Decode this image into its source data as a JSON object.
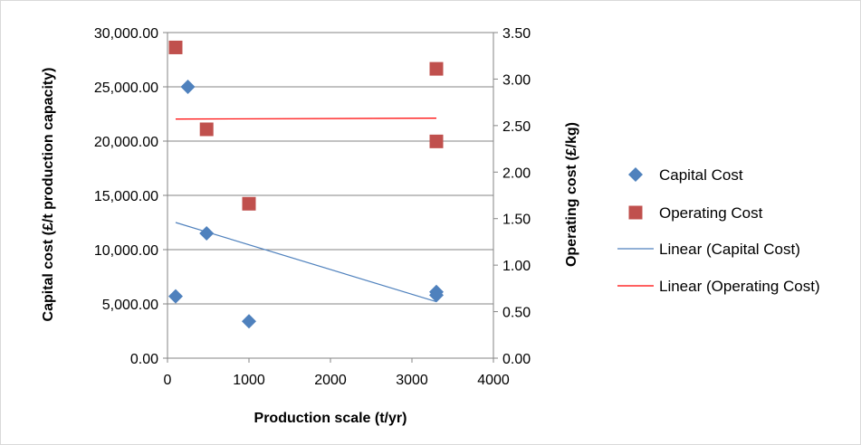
{
  "chart_data": {
    "type": "scatter",
    "xlabel": "Production scale (t/yr)",
    "ylabel": "Capital cost (£/t production capacity)",
    "y2label": "Operating cost (£/kg)",
    "xlim": [
      0,
      4000
    ],
    "ylim": [
      0,
      30000
    ],
    "y2lim": [
      0,
      3.5
    ],
    "x_ticks": [
      "0",
      "1000",
      "2000",
      "3000",
      "4000"
    ],
    "y_ticks": [
      "0.00",
      "5,000.00",
      "10,000.00",
      "15,000.00",
      "20,000.00",
      "25,000.00",
      "30,000.00"
    ],
    "y2_ticks": [
      "0.00",
      "0.50",
      "1.00",
      "1.50",
      "2.00",
      "2.50",
      "3.00",
      "3.50"
    ],
    "grid": "horizontal",
    "legend_position": "right",
    "series": [
      {
        "name": "Capital Cost",
        "axis": "left",
        "marker": "diamond",
        "color": "#4f81bd",
        "points": [
          [
            100,
            5700
          ],
          [
            250,
            25000
          ],
          [
            480,
            11500
          ],
          [
            1000,
            3400
          ],
          [
            3300,
            5800
          ],
          [
            3300,
            6100
          ]
        ]
      },
      {
        "name": "Operating Cost",
        "axis": "right",
        "marker": "square",
        "color": "#c0504d",
        "points": [
          [
            100,
            3.34
          ],
          [
            480,
            2.46
          ],
          [
            1000,
            1.66
          ],
          [
            3300,
            3.11
          ],
          [
            3300,
            2.33
          ]
        ]
      },
      {
        "name": "Linear (Capital Cost)",
        "axis": "left",
        "marker": "line",
        "color": "#4f81bd",
        "points": [
          [
            100,
            12500
          ],
          [
            3300,
            5200
          ]
        ]
      },
      {
        "name": "Linear (Operating Cost)",
        "axis": "right",
        "marker": "line",
        "color": "#ff0000",
        "points": [
          [
            100,
            2.57
          ],
          [
            3300,
            2.58
          ]
        ]
      }
    ]
  }
}
